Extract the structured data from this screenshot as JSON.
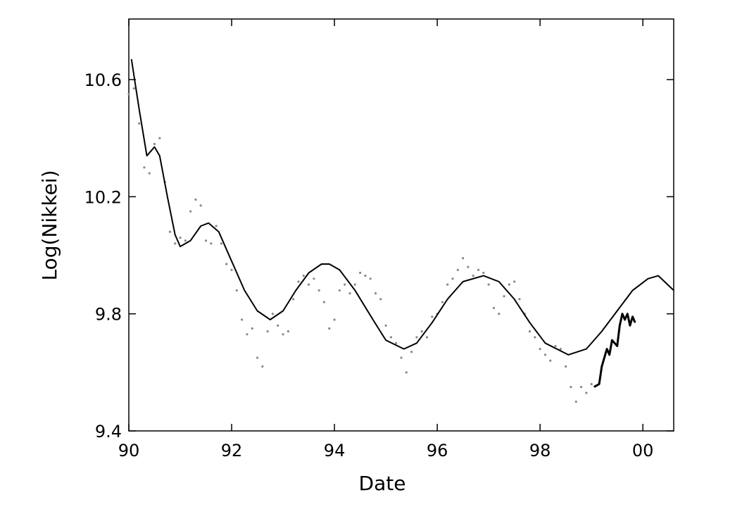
{
  "chart_data": {
    "type": "line",
    "xlabel": "Date",
    "ylabel": "Log(Nikkei)",
    "xlim": [
      90,
      100.6
    ],
    "xticks": [
      90,
      92,
      94,
      96,
      98,
      {
        "value": 100,
        "label": "00"
      }
    ],
    "ylim": [
      9.4,
      10.807
    ],
    "yticks": [
      9.4,
      9.8,
      10.2,
      10.6
    ],
    "grid": false,
    "series": [
      {
        "style": "dots",
        "color": "#888888",
        "x": [
          90.0,
          90.1,
          90.2,
          90.3,
          90.4,
          90.5,
          90.6,
          90.7,
          90.8,
          90.9,
          91.0,
          91.1,
          91.2,
          91.3,
          91.4,
          91.5,
          91.6,
          91.7,
          91.8,
          91.9,
          92.0,
          92.1,
          92.2,
          92.3,
          92.4,
          92.5,
          92.6,
          92.7,
          92.8,
          92.9,
          93.0,
          93.1,
          93.2,
          93.3,
          93.4,
          93.5,
          93.6,
          93.7,
          93.8,
          93.9,
          94.0,
          94.1,
          94.2,
          94.3,
          94.4,
          94.5,
          94.6,
          94.7,
          94.8,
          94.9,
          95.0,
          95.1,
          95.2,
          95.3,
          95.4,
          95.5,
          95.6,
          95.7,
          95.8,
          95.9,
          96.0,
          96.1,
          96.2,
          96.3,
          96.4,
          96.5,
          96.6,
          96.7,
          96.8,
          96.9,
          97.0,
          97.1,
          97.2,
          97.3,
          97.4,
          97.5,
          97.6,
          97.7,
          97.8,
          97.9,
          98.0,
          98.1,
          98.2,
          98.3,
          98.4,
          98.5,
          98.6,
          98.7,
          98.8,
          98.9,
          99.0
        ],
        "values": [
          10.55,
          10.57,
          10.45,
          10.3,
          10.28,
          10.38,
          10.4,
          10.25,
          10.08,
          10.04,
          10.06,
          10.05,
          10.15,
          10.19,
          10.17,
          10.05,
          10.04,
          10.1,
          10.04,
          9.97,
          9.95,
          9.88,
          9.78,
          9.73,
          9.75,
          9.65,
          9.62,
          9.74,
          9.8,
          9.76,
          9.73,
          9.74,
          9.85,
          9.91,
          9.93,
          9.9,
          9.92,
          9.88,
          9.84,
          9.75,
          9.78,
          9.88,
          9.9,
          9.87,
          9.9,
          9.94,
          9.93,
          9.92,
          9.87,
          9.85,
          9.76,
          9.72,
          9.7,
          9.65,
          9.6,
          9.67,
          9.72,
          9.74,
          9.72,
          9.79,
          9.8,
          9.84,
          9.9,
          9.92,
          9.95,
          9.99,
          9.96,
          9.93,
          9.95,
          9.94,
          9.9,
          9.82,
          9.8,
          9.86,
          9.9,
          9.91,
          9.85,
          9.8,
          9.74,
          9.72,
          9.68,
          9.66,
          9.64,
          9.69,
          9.68,
          9.62,
          9.55,
          9.5,
          9.55,
          9.53,
          9.56
        ]
      },
      {
        "style": "line",
        "color": "#000000",
        "width": 2,
        "x": [
          90.05,
          90.2,
          90.35,
          90.5,
          90.6,
          90.75,
          90.9,
          91.0,
          91.2,
          91.4,
          91.55,
          91.75,
          92.0,
          92.25,
          92.5,
          92.75,
          93.0,
          93.25,
          93.5,
          93.75,
          93.9,
          94.1,
          94.4,
          94.75,
          95.0,
          95.35,
          95.6,
          95.9,
          96.2,
          96.5,
          96.9,
          97.2,
          97.5,
          97.8,
          98.1,
          98.55,
          98.9,
          99.2,
          99.5,
          99.8,
          100.1,
          100.3,
          100.6
        ],
        "values": [
          10.67,
          10.5,
          10.34,
          10.37,
          10.34,
          10.2,
          10.07,
          10.03,
          10.05,
          10.1,
          10.11,
          10.08,
          9.98,
          9.88,
          9.81,
          9.78,
          9.81,
          9.88,
          9.94,
          9.97,
          9.97,
          9.95,
          9.88,
          9.78,
          9.71,
          9.68,
          9.7,
          9.77,
          9.85,
          9.91,
          9.93,
          9.91,
          9.85,
          9.77,
          9.7,
          9.66,
          9.68,
          9.74,
          9.81,
          9.88,
          9.92,
          9.93,
          9.88
        ]
      },
      {
        "style": "line",
        "color": "#000000",
        "width": 3,
        "x": [
          99.05,
          99.15,
          99.2,
          99.3,
          99.35,
          99.4,
          99.5,
          99.55,
          99.6,
          99.65,
          99.7,
          99.75,
          99.8,
          99.85
        ],
        "values": [
          9.55,
          9.56,
          9.62,
          9.68,
          9.66,
          9.71,
          9.69,
          9.76,
          9.8,
          9.78,
          9.8,
          9.76,
          9.79,
          9.77
        ]
      }
    ]
  }
}
